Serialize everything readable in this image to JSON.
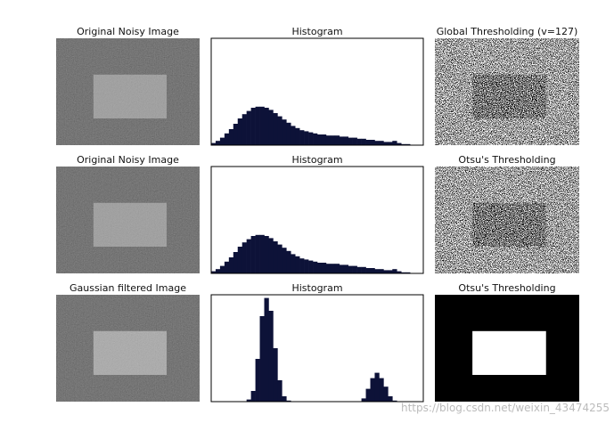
{
  "panels": [
    {
      "type": "image",
      "variant": "noisy",
      "title": "Original Noisy Image"
    },
    {
      "type": "histogram",
      "title": "Histogram",
      "ylim": [
        0,
        100
      ],
      "color": "#0d1238",
      "values": [
        2,
        4,
        7,
        11,
        15,
        20,
        25,
        29,
        32,
        35,
        36,
        36,
        35,
        33,
        30,
        27,
        24,
        21,
        18,
        16,
        14,
        13,
        12,
        11,
        10,
        10,
        9,
        9,
        9,
        8,
        8,
        7,
        7,
        6,
        6,
        5,
        5,
        4,
        4,
        3,
        3,
        4,
        2,
        1,
        1,
        0,
        0,
        0
      ]
    },
    {
      "type": "image",
      "variant": "threshold-noisy",
      "title": "Global Thresholding (v=127)"
    },
    {
      "type": "image",
      "variant": "noisy",
      "title": "Original Noisy Image"
    },
    {
      "type": "histogram",
      "title": "Histogram",
      "ylim": [
        0,
        100
      ],
      "color": "#0d1238",
      "values": [
        2,
        4,
        7,
        11,
        15,
        20,
        25,
        29,
        32,
        35,
        36,
        36,
        35,
        33,
        30,
        27,
        24,
        21,
        18,
        16,
        14,
        13,
        12,
        11,
        10,
        10,
        9,
        9,
        9,
        8,
        8,
        7,
        7,
        6,
        6,
        5,
        5,
        4,
        4,
        3,
        3,
        4,
        2,
        1,
        1,
        0,
        0,
        0
      ]
    },
    {
      "type": "image",
      "variant": "threshold-noisy",
      "title": "Otsu's Thresholding"
    },
    {
      "type": "image",
      "variant": "filtered",
      "title": "Gaussian filtered Image"
    },
    {
      "type": "histogram",
      "title": "Histogram",
      "ylim": [
        0,
        100
      ],
      "color": "#0d1238",
      "values": [
        0,
        0,
        0,
        0,
        0,
        0,
        0,
        0,
        2,
        10,
        40,
        80,
        97,
        85,
        50,
        20,
        5,
        1,
        0,
        0,
        0,
        0,
        0,
        0,
        0,
        0,
        0,
        0,
        0,
        0,
        0,
        0,
        0,
        0,
        3,
        12,
        22,
        27,
        22,
        14,
        5,
        1,
        0,
        0,
        0,
        0,
        0,
        0
      ]
    },
    {
      "type": "image",
      "variant": "threshold-clean",
      "title": "Otsu's Thresholding"
    }
  ],
  "watermark": "https://blog.csdn.net/weixin_43474255"
}
